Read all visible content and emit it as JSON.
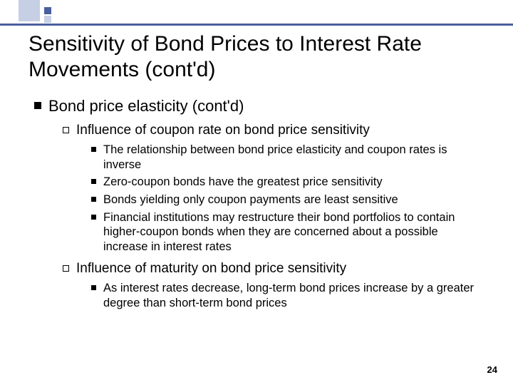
{
  "title": "Sensitivity of Bond Prices to Interest Rate Movements (cont'd)",
  "l1": "Bond price elasticity (cont'd)",
  "l2a": "Influence of coupon rate on bond price sensitivity",
  "l3a1": "The relationship between bond price elasticity and coupon rates is inverse",
  "l3a2": "Zero-coupon bonds have the greatest price sensitivity",
  "l3a3": "Bonds yielding only coupon payments are least sensitive",
  "l3a4": "Financial institutions may restructure their bond portfolios to contain higher-coupon bonds when they are concerned about a possible increase in interest rates",
  "l2b": "Influence of maturity on bond price sensitivity",
  "l3b1": "As interest rates decrease, long-term bond prices increase by a greater degree than short-term bond prices",
  "pagenum": "24",
  "colors": {
    "accent_dark": "#4a5f9e",
    "accent_light": "#c6cfe4",
    "text": "#000000",
    "bg": "#ffffff"
  }
}
